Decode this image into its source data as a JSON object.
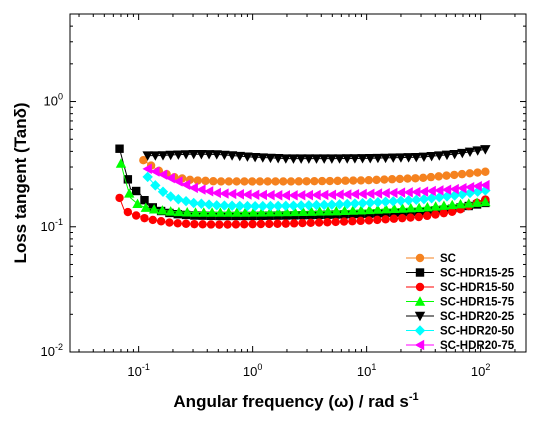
{
  "chart_data": {
    "type": "scatter",
    "xlabel": "Angular frequency (ω) / rad s",
    "xlabel_superscript": "-1",
    "ylabel": "Loss tangent (Tanδ)",
    "xscale": "log",
    "yscale": "log",
    "xlim": [
      0.025,
      250
    ],
    "ylim": [
      0.01,
      5
    ],
    "x_ticks": [
      {
        "value": 0.1,
        "base": "10",
        "exp": "-1"
      },
      {
        "value": 1,
        "base": "10",
        "exp": "0"
      },
      {
        "value": 10,
        "base": "10",
        "exp": "1"
      },
      {
        "value": 100,
        "base": "10",
        "exp": "2"
      }
    ],
    "y_ticks": [
      {
        "value": 0.01,
        "base": "10",
        "exp": "-2"
      },
      {
        "value": 0.1,
        "base": "10",
        "exp": "-1"
      },
      {
        "value": 1,
        "base": "10",
        "exp": "0"
      }
    ],
    "legend_position": "bottom-right",
    "grid": false,
    "series": [
      {
        "name": "SC",
        "color": "#F5821F",
        "marker": "circle",
        "points": [
          [
            0.11,
            0.34
          ],
          [
            0.15,
            0.28
          ],
          [
            0.2,
            0.25
          ],
          [
            0.3,
            0.235
          ],
          [
            0.5,
            0.23
          ],
          [
            1,
            0.23
          ],
          [
            2,
            0.23
          ],
          [
            5,
            0.232
          ],
          [
            10,
            0.235
          ],
          [
            30,
            0.245
          ],
          [
            60,
            0.26
          ],
          [
            110,
            0.275
          ]
        ]
      },
      {
        "name": "SC-HDR15-25",
        "color": "#000000",
        "marker": "square",
        "points": [
          [
            0.068,
            0.42
          ],
          [
            0.075,
            0.3
          ],
          [
            0.085,
            0.2
          ],
          [
            0.1,
            0.19
          ],
          [
            0.12,
            0.15
          ],
          [
            0.15,
            0.135
          ],
          [
            0.2,
            0.127
          ],
          [
            0.3,
            0.123
          ],
          [
            0.5,
            0.122
          ],
          [
            1,
            0.122
          ],
          [
            2,
            0.123
          ],
          [
            5,
            0.125
          ],
          [
            10,
            0.127
          ],
          [
            30,
            0.132
          ],
          [
            60,
            0.14
          ],
          [
            110,
            0.155
          ]
        ]
      },
      {
        "name": "SC-HDR15-50",
        "color": "#FF0000",
        "marker": "circle",
        "points": [
          [
            0.068,
            0.17
          ],
          [
            0.075,
            0.135
          ],
          [
            0.09,
            0.125
          ],
          [
            0.12,
            0.115
          ],
          [
            0.2,
            0.107
          ],
          [
            0.3,
            0.105
          ],
          [
            0.5,
            0.104
          ],
          [
            1,
            0.105
          ],
          [
            2,
            0.106
          ],
          [
            5,
            0.109
          ],
          [
            10,
            0.112
          ],
          [
            30,
            0.12
          ],
          [
            60,
            0.133
          ],
          [
            110,
            0.165
          ]
        ]
      },
      {
        "name": "SC-HDR15-75",
        "color": "#00FF00",
        "marker": "triangle-up",
        "points": [
          [
            0.07,
            0.32
          ],
          [
            0.075,
            0.25
          ],
          [
            0.085,
            0.17
          ],
          [
            0.1,
            0.15
          ],
          [
            0.12,
            0.14
          ],
          [
            0.2,
            0.132
          ],
          [
            0.3,
            0.13
          ],
          [
            0.5,
            0.13
          ],
          [
            1,
            0.13
          ],
          [
            2,
            0.131
          ],
          [
            5,
            0.133
          ],
          [
            10,
            0.136
          ],
          [
            30,
            0.142
          ],
          [
            60,
            0.15
          ],
          [
            110,
            0.158
          ]
        ]
      },
      {
        "name": "SC-HDR20-25",
        "color": "#000000",
        "marker": "triangle-down",
        "points": [
          [
            0.12,
            0.37
          ],
          [
            0.15,
            0.37
          ],
          [
            0.2,
            0.375
          ],
          [
            0.3,
            0.38
          ],
          [
            0.5,
            0.378
          ],
          [
            1,
            0.36
          ],
          [
            2,
            0.35
          ],
          [
            5,
            0.35
          ],
          [
            10,
            0.352
          ],
          [
            30,
            0.36
          ],
          [
            60,
            0.38
          ],
          [
            110,
            0.415
          ]
        ]
      },
      {
        "name": "SC-HDR20-50",
        "color": "#00FFFF",
        "marker": "diamond",
        "points": [
          [
            0.12,
            0.25
          ],
          [
            0.15,
            0.2
          ],
          [
            0.2,
            0.17
          ],
          [
            0.3,
            0.155
          ],
          [
            0.5,
            0.148
          ],
          [
            1,
            0.146
          ],
          [
            2,
            0.147
          ],
          [
            5,
            0.15
          ],
          [
            10,
            0.155
          ],
          [
            30,
            0.165
          ],
          [
            60,
            0.178
          ],
          [
            110,
            0.195
          ]
        ]
      },
      {
        "name": "SC-HDR20-75",
        "color": "#FF00FF",
        "marker": "triangle-left",
        "points": [
          [
            0.12,
            0.29
          ],
          [
            0.15,
            0.27
          ],
          [
            0.2,
            0.24
          ],
          [
            0.3,
            0.205
          ],
          [
            0.5,
            0.185
          ],
          [
            1,
            0.18
          ],
          [
            2,
            0.178
          ],
          [
            5,
            0.18
          ],
          [
            10,
            0.183
          ],
          [
            30,
            0.19
          ],
          [
            60,
            0.2
          ],
          [
            110,
            0.215
          ]
        ]
      }
    ]
  }
}
